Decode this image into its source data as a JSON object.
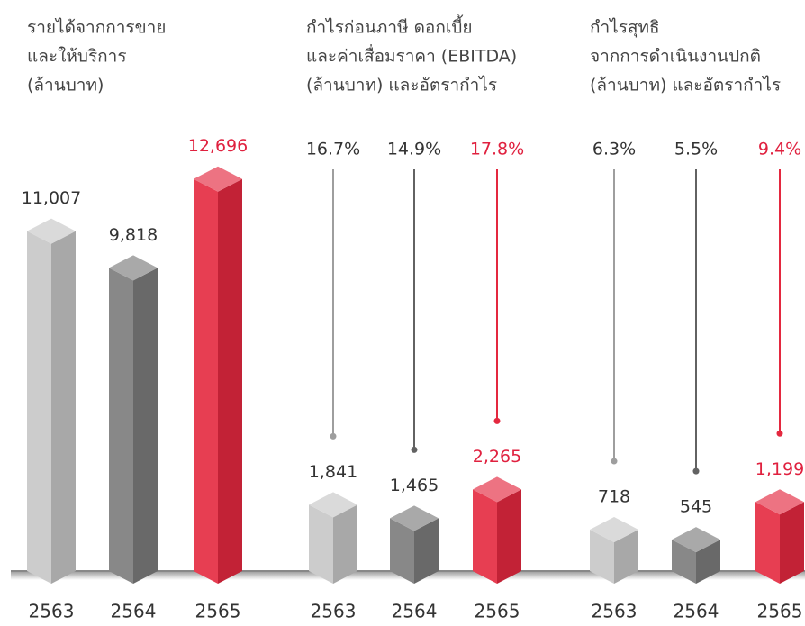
{
  "chart_data": [
    {
      "type": "bar",
      "title": [
        "รายได้จากการขาย",
        "และให้บริการ",
        "(ล้านบาท)"
      ],
      "categories": [
        "2563",
        "2564",
        "2565"
      ],
      "values": [
        11007,
        9818,
        12696
      ],
      "value_labels": [
        "11,007",
        "9,818",
        "12,696"
      ],
      "colors": [
        "#c6c6c6",
        "#7b7b7b",
        "#e4283f"
      ],
      "label_colors": [
        "#333333",
        "#333333",
        "#e0213f"
      ],
      "ylim": [
        0,
        14000
      ]
    },
    {
      "type": "bar",
      "title": [
        "กำไรก่อนภาษี ดอกเบี้ย",
        "และค่าเสื่อมราคา (EBITDA)",
        "(ล้านบาท) และอัตรากำไร"
      ],
      "categories": [
        "2563",
        "2564",
        "2565"
      ],
      "values": [
        1841,
        1465,
        2265
      ],
      "value_labels": [
        "1,841",
        "1,465",
        "2,265"
      ],
      "margins": [
        16.7,
        14.9,
        17.8
      ],
      "margin_labels": [
        "16.7%",
        "14.9%",
        "17.8%"
      ],
      "colors": [
        "#c6c6c6",
        "#7b7b7b",
        "#e4283f"
      ],
      "label_colors": [
        "#333333",
        "#333333",
        "#e0213f"
      ],
      "ylim": [
        0,
        12000
      ]
    },
    {
      "type": "bar",
      "title": [
        "กำไรสุทธิ",
        "จากการดำเนินงานปกติ",
        "(ล้านบาท) และอัตรากำไร"
      ],
      "categories": [
        "2563",
        "2564",
        "2565"
      ],
      "values": [
        718,
        545,
        1199
      ],
      "value_labels": [
        "718",
        "545",
        "1,199"
      ],
      "margins": [
        6.3,
        5.5,
        9.4
      ],
      "margin_labels": [
        "6.3%",
        "5.5%",
        "9.4%"
      ],
      "colors": [
        "#c6c6c6",
        "#7b7b7b",
        "#e4283f"
      ],
      "label_colors": [
        "#333333",
        "#333333",
        "#e0213f"
      ],
      "ylim": [
        0,
        7500
      ]
    }
  ]
}
